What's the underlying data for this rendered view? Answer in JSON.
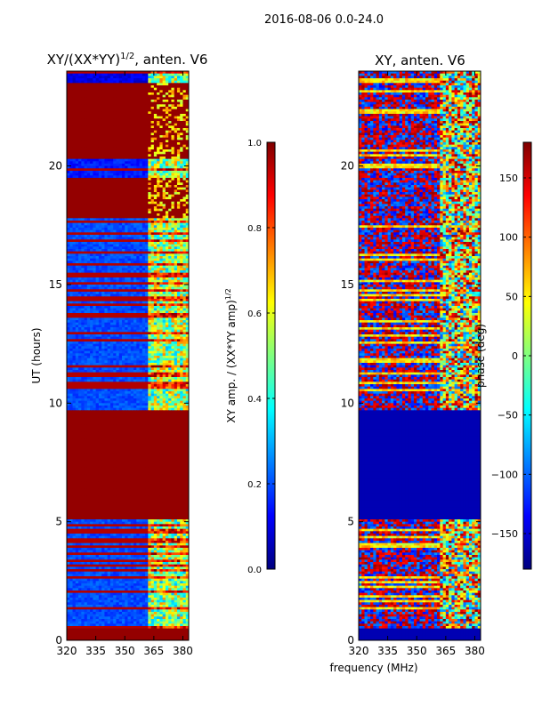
{
  "figure": {
    "suptitle": "2016-08-06 0.0-24.0",
    "shared_xlabel": "frequency (MHz)"
  },
  "chart_data": [
    {
      "type": "heatmap",
      "title": "XY/(XX*YY)",
      "title_superscript": "1/2",
      "title_suffix": ", anten. V6",
      "xlabel": "",
      "ylabel": "UT (hours)",
      "xlim": [
        320,
        383
      ],
      "ylim": [
        0,
        24
      ],
      "xticks": [
        320,
        335,
        350,
        365,
        380
      ],
      "yticks": [
        0,
        5,
        10,
        15,
        20
      ],
      "colormap": "jet",
      "colorbar": {
        "label": "XY amp. / (XX*YY amp)",
        "label_superscript": "1/2",
        "range": [
          0.0,
          1.0
        ],
        "ticks": [
          "0.0",
          "0.2",
          "0.4",
          "0.6",
          "0.8",
          "1.0"
        ]
      },
      "time_blocks": [
        {
          "range": [
            0.0,
            0.5
          ],
          "level": 1.0
        },
        {
          "range": [
            0.5,
            5.1
          ],
          "level": 0.2
        },
        {
          "range": [
            5.1,
            9.7
          ],
          "level": 1.0
        },
        {
          "range": [
            9.7,
            17.8
          ],
          "level": 0.2
        },
        {
          "range": [
            17.8,
            19.5
          ],
          "level": 1.0
        },
        {
          "range": [
            19.5,
            20.3
          ],
          "level": 0.15
        },
        {
          "range": [
            20.3,
            23.5
          ],
          "level": 1.0
        },
        {
          "range": [
            23.5,
            24.0
          ],
          "level": 0.1
        }
      ],
      "high_frequency_band": [
        362,
        383
      ]
    },
    {
      "type": "heatmap",
      "title": "XY, anten. V6",
      "title_superscript": "",
      "title_suffix": "",
      "xlabel": "",
      "ylabel": "",
      "xlim": [
        320,
        383
      ],
      "ylim": [
        0,
        24
      ],
      "xticks": [
        320,
        335,
        350,
        365,
        380
      ],
      "yticks": [
        0,
        5,
        10,
        15,
        20
      ],
      "colormap": "jet",
      "colorbar": {
        "label": "phase (deg)",
        "label_superscript": "",
        "range": [
          -180,
          180
        ],
        "ticks": [
          "−150",
          "−100",
          "−50",
          "0",
          "50",
          "100",
          "150"
        ]
      },
      "time_blocks": [
        {
          "range": [
            0.0,
            0.5
          ],
          "level": 0.05
        },
        {
          "range": [
            0.5,
            5.1
          ],
          "level": 0.5
        },
        {
          "range": [
            5.1,
            9.7
          ],
          "level": 0.05
        },
        {
          "range": [
            9.7,
            17.8
          ],
          "level": 0.5
        },
        {
          "range": [
            17.8,
            19.5
          ],
          "level": 0.3
        },
        {
          "range": [
            19.5,
            20.3
          ],
          "level": 0.45
        },
        {
          "range": [
            20.3,
            24.0
          ],
          "level": 0.4
        }
      ],
      "high_frequency_band": [
        362,
        383
      ]
    }
  ]
}
